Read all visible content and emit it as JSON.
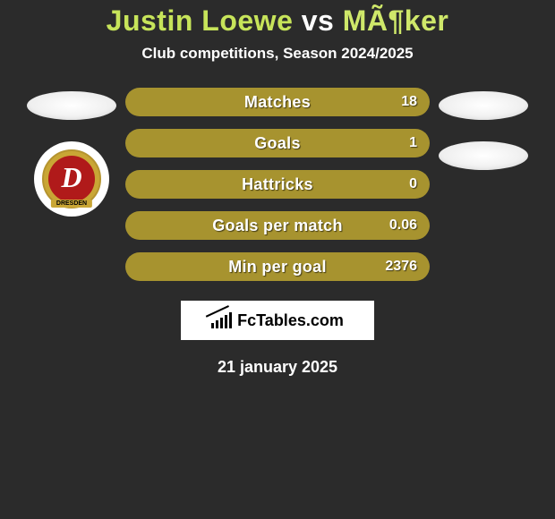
{
  "title": {
    "text_player1": "Justin Loewe",
    "vs": " vs ",
    "text_player2": "MÃ¶ker",
    "color_player1": "#c7e45a",
    "color_vs": "#ffffff",
    "color_player2": "#cfe86a"
  },
  "subtitle": "Club competitions, Season 2024/2025",
  "crest": {
    "letter": "D",
    "banner": "DRESDEN"
  },
  "stats": [
    {
      "label": "Matches",
      "value_right": "18"
    },
    {
      "label": "Goals",
      "value_right": "1"
    },
    {
      "label": "Hattricks",
      "value_right": "0"
    },
    {
      "label": "Goals per match",
      "value_right": "0.06"
    },
    {
      "label": "Min per goal",
      "value_right": "2376"
    }
  ],
  "branding": "FcTables.com",
  "date": "21 january 2025",
  "colors": {
    "background": "#2b2b2b",
    "bar_fill": "#a7932f",
    "text_white": "#ffffff",
    "crest_gold": "#c9a635",
    "crest_red": "#b01a1a"
  }
}
